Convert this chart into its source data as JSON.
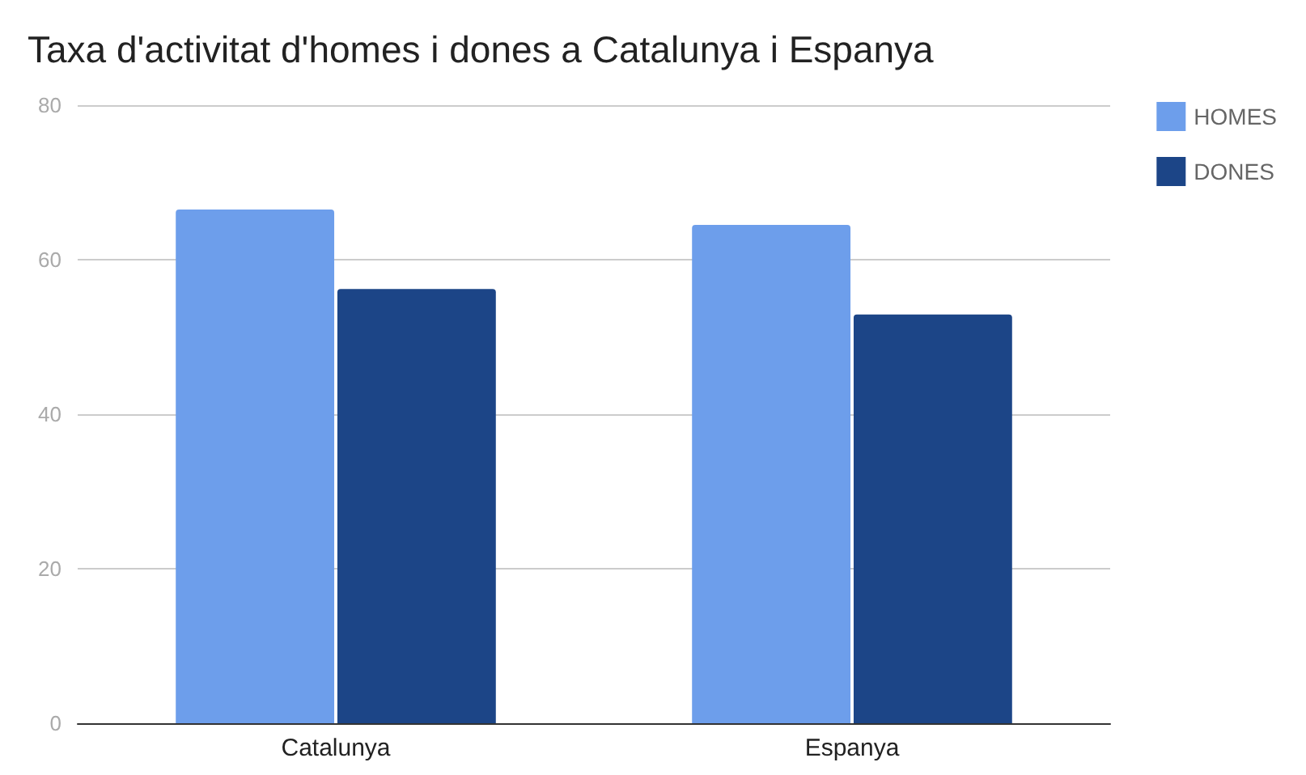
{
  "chart_data": {
    "type": "bar",
    "title": "Taxa d'activitat d'homes i dones a Catalunya i Espanya",
    "categories": [
      "Catalunya",
      "Espanya"
    ],
    "series": [
      {
        "name": "HOMES",
        "color": "#6d9eeb",
        "values": [
          66.5,
          64.5
        ]
      },
      {
        "name": "DONES",
        "color": "#1c4587",
        "values": [
          56.2,
          52.9
        ]
      }
    ],
    "ylim": [
      0,
      80
    ],
    "yticks": [
      0,
      20,
      40,
      60,
      80
    ],
    "grid": "y",
    "legend": "top right"
  }
}
